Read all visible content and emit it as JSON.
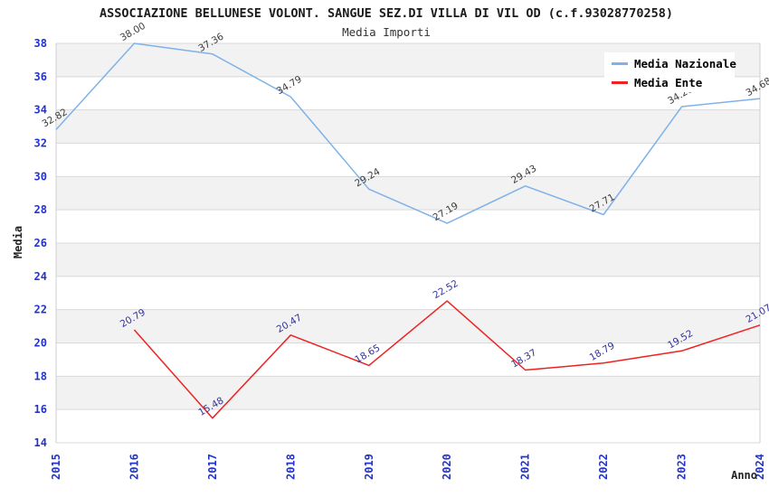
{
  "header": {
    "title": "ASSOCIAZIONE BELLUNESE VOLONT. SANGUE SEZ.DI VILLA DI VIL OD (c.f.93028770258)",
    "subtitle": "Media Importi"
  },
  "chart_data": {
    "type": "line",
    "title": "ASSOCIAZIONE BELLUNESE VOLONT. SANGUE SEZ.DI VILLA DI VIL OD (c.f.93028770258)",
    "subtitle": "Media Importi",
    "xlabel": "Anno",
    "ylabel": "Media",
    "categories": [
      "2015",
      "2016",
      "2017",
      "2018",
      "2019",
      "2020",
      "2021",
      "2022",
      "2023",
      "2024"
    ],
    "series": [
      {
        "name": "Media Nazionale",
        "color": "#7fb2e8",
        "label_color": "#3c3c3c",
        "values": [
          32.82,
          38.0,
          37.36,
          34.79,
          29.24,
          27.19,
          29.43,
          27.71,
          34.2,
          34.68
        ]
      },
      {
        "name": "Media Ente",
        "color": "#ee2222",
        "label_color": "#333399",
        "values": [
          null,
          20.79,
          15.48,
          20.47,
          18.65,
          22.52,
          18.37,
          18.79,
          19.52,
          21.07
        ]
      }
    ],
    "ylim": [
      14,
      38
    ],
    "ytick_step": 2,
    "grid": "horizontal gridlines with alternating shaded bands",
    "legend_position": "top-right",
    "tick_label_color": "#2233cc",
    "band_color": "#f2f2f2",
    "gridline_color": "#d9d9d9",
    "border_color": "#cfcfcf"
  }
}
